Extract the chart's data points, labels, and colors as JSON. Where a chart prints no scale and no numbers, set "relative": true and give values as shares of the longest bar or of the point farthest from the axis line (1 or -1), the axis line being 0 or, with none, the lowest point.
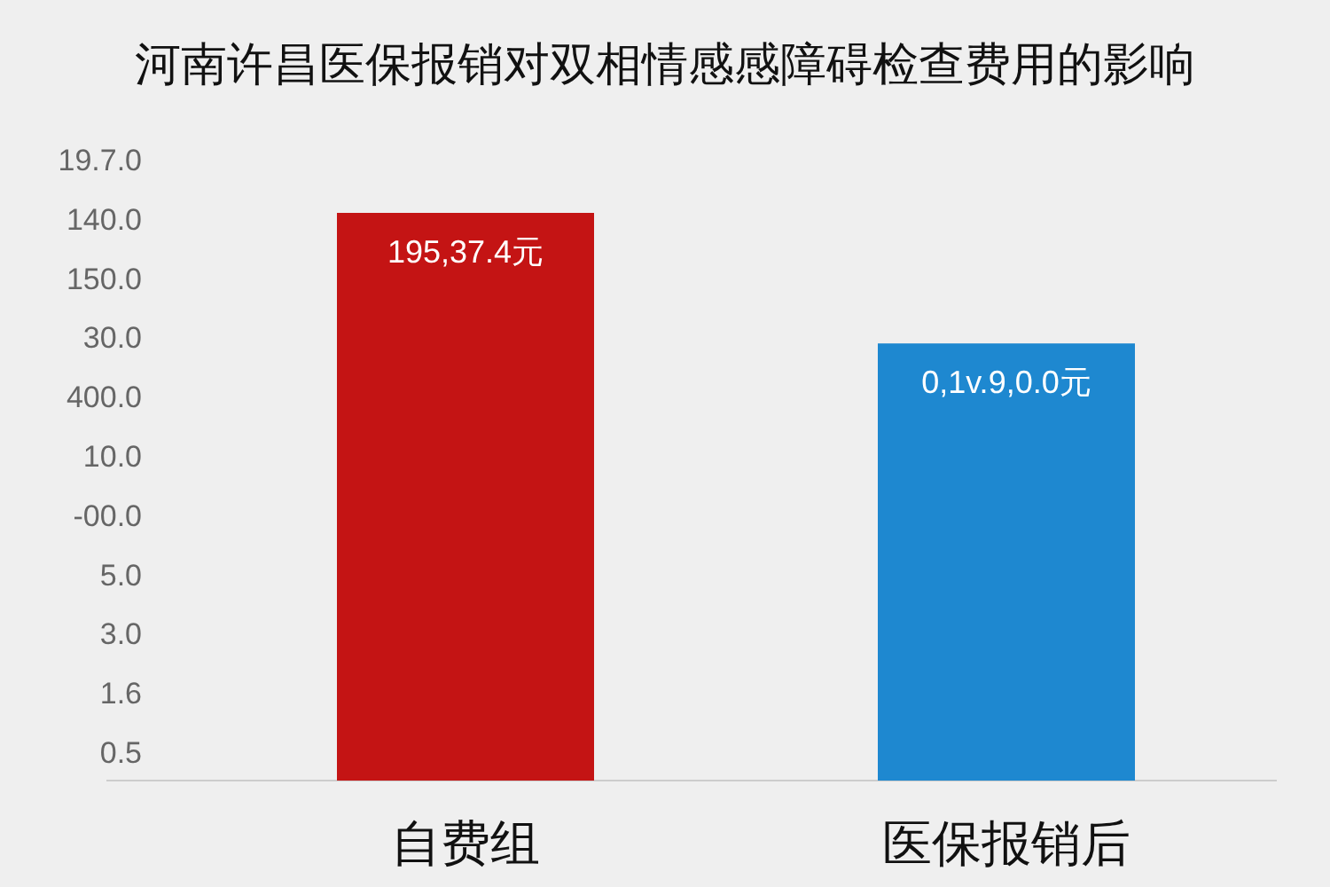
{
  "chart_data": {
    "type": "bar",
    "title": "河南许昌医保报销对双相情感感障碍检查费用的影响",
    "categories": [
      "自费组",
      "医保报销后"
    ],
    "values": [
      1,
      0.77
    ],
    "colors": [
      "#c41414",
      "#1e88d0"
    ],
    "relative": true,
    "annotations": [
      {
        "text": "195,37.4元",
        "x": "自费组",
        "y": 1
      },
      {
        "text": "0,1v.9,0.0元",
        "x": "医保报销后",
        "y": 0.77
      },
      "19.7.0",
      "140.0",
      "150.0",
      "30.0",
      "400.0",
      "10.0",
      "-00.0",
      "5.0",
      "3.0",
      "1.6",
      "0.5"
    ]
  }
}
